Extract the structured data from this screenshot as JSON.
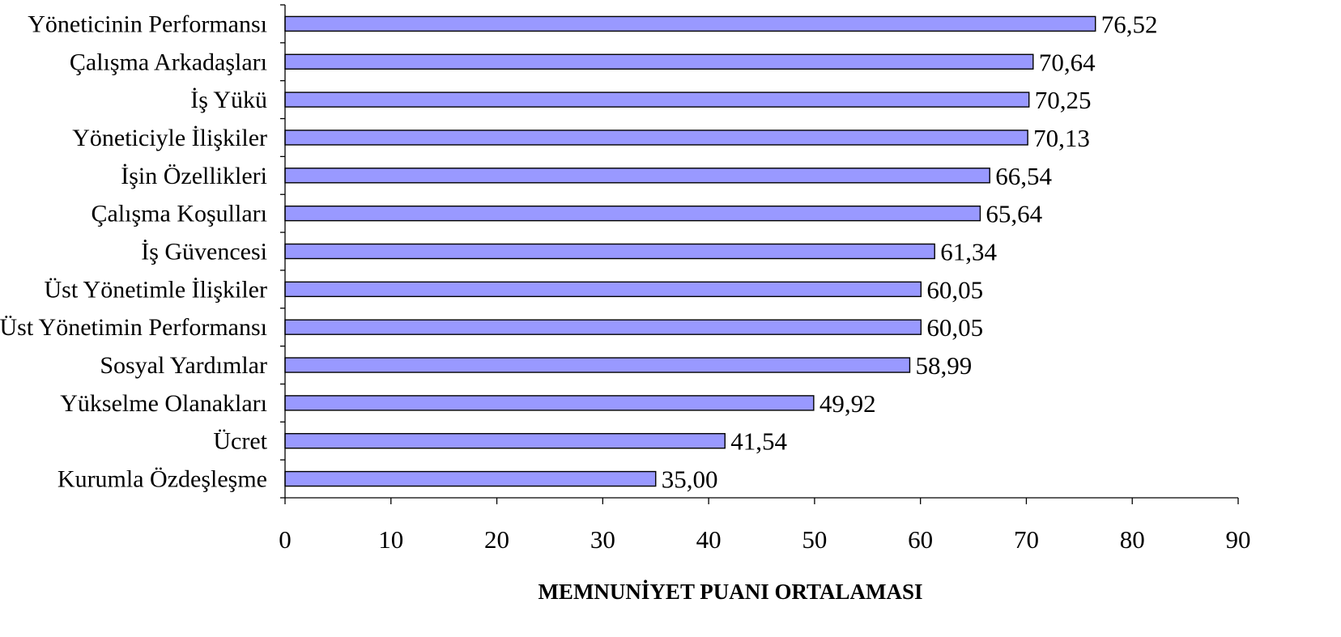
{
  "chart_data": {
    "type": "bar",
    "orientation": "horizontal",
    "categories": [
      "Yöneticinin Performansı",
      "Çalışma Arkadaşları",
      "İş Yükü",
      "Yöneticiyle İlişkiler",
      "İşin Özellikleri",
      "Çalışma Koşulları",
      "İş Güvencesi",
      "Üst Yönetimle İlişkiler",
      "Üst Yönetimin Performansı",
      "Sosyal Yardımlar",
      "Yükselme Olanakları",
      "Ücret",
      "Kurumla Özdeşleşme"
    ],
    "values": [
      76.52,
      70.64,
      70.25,
      70.13,
      66.54,
      65.64,
      61.34,
      60.05,
      60.05,
      58.99,
      49.92,
      41.54,
      35.0
    ],
    "value_labels": [
      "76,52",
      "70,64",
      "70,25",
      "70,13",
      "66,54",
      "65,64",
      "61,34",
      "60,05",
      "60,05",
      "58,99",
      "49,92",
      "41,54",
      "35,00"
    ],
    "title": "",
    "xlabel": "MEMNUNİYET PUANI ORTALAMASI",
    "ylabel": "",
    "xlim": [
      0,
      90
    ],
    "xticks": [
      0,
      10,
      20,
      30,
      40,
      50,
      60,
      70,
      80,
      90
    ],
    "grid": false,
    "legend": "none",
    "bar_color": "#9999ff",
    "bar_edge_color": "#000000"
  }
}
